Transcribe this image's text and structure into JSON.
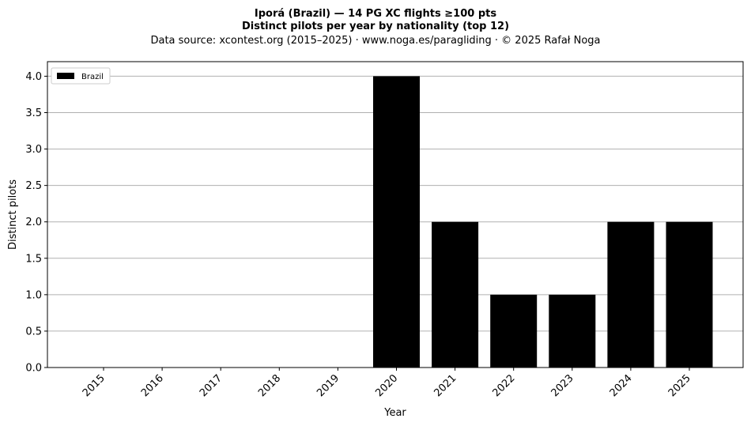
{
  "chart_data": {
    "type": "bar",
    "title_line1": "Iporá (Brazil)  —  14 PG XC flights ≥100 pts",
    "title_line2": "Distinct pilots per year by nationality (top 12)",
    "subtitle": "Data source: xcontest.org (2015–2025)  ·  www.noga.es/paragliding  ·  © 2025 Rafał Noga",
    "xlabel": "Year",
    "ylabel": "Distinct pilots",
    "categories": [
      "2015",
      "2016",
      "2017",
      "2018",
      "2019",
      "2020",
      "2021",
      "2022",
      "2023",
      "2024",
      "2025"
    ],
    "series": [
      {
        "name": "Brazil",
        "color": "#000000",
        "values": [
          0,
          0,
          0,
          0,
          0,
          4,
          2,
          1,
          1,
          2,
          2
        ]
      }
    ],
    "ylim": [
      0,
      4.2
    ],
    "yticks": [
      "0.0",
      "0.5",
      "1.0",
      "1.5",
      "2.0",
      "2.5",
      "3.0",
      "3.5",
      "4.0"
    ],
    "grid": "y",
    "legend_position": "top-left"
  }
}
